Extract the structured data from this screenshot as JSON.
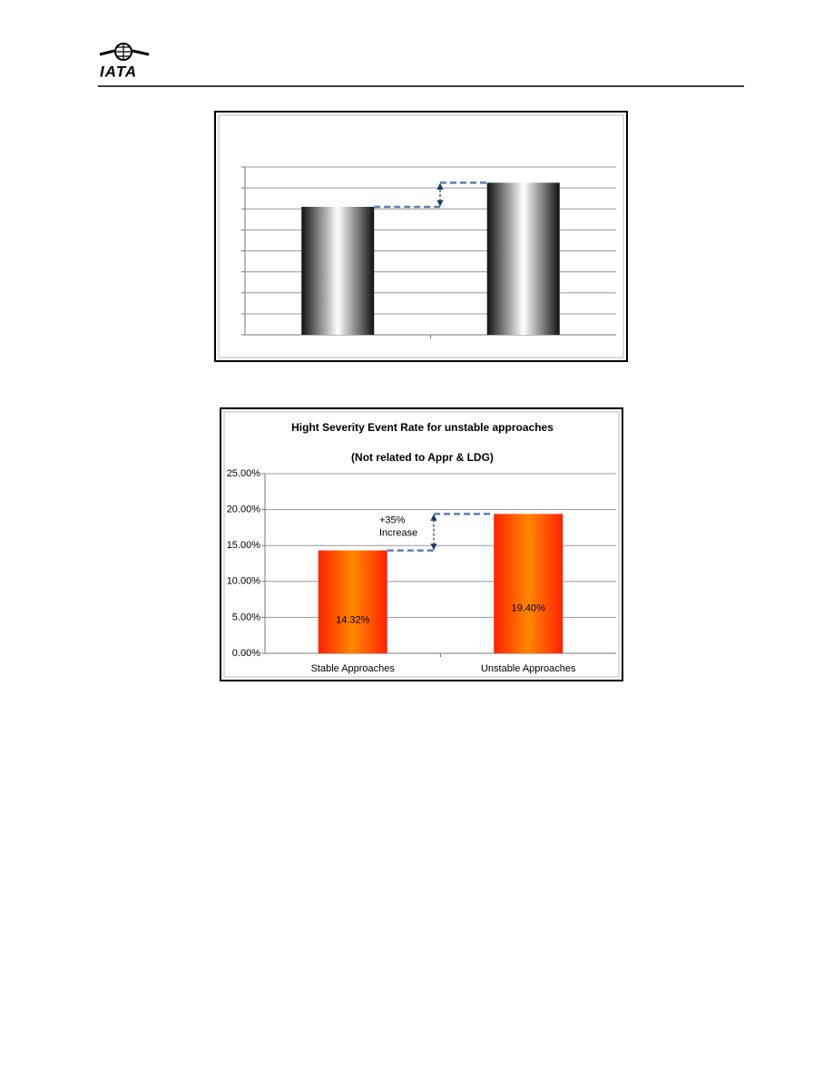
{
  "header": {
    "logo": "IATA"
  },
  "chart_data": [
    {
      "type": "bar",
      "categories": [
        null,
        null
      ],
      "values": [
        6.1,
        7.25
      ],
      "gradient": [
        "#111111",
        "#ffffff",
        "#111111"
      ],
      "ylim": [
        0,
        8
      ],
      "yticks": [
        0,
        1,
        2,
        3,
        4,
        5,
        6,
        7,
        8
      ],
      "tick_labels": false,
      "grid": true
    },
    {
      "type": "bar",
      "title": "Hight Severity Event Rate for unstable approaches",
      "subtitle": "(Not related to Appr & LDG)",
      "annotation": [
        "+35%",
        "Increase"
      ],
      "categories": [
        "Stable Approaches",
        "Unstable Approaches"
      ],
      "values": [
        14.32,
        19.4
      ],
      "value_labels": [
        "14.32%",
        "19.40%"
      ],
      "gradient": [
        "#ff2200",
        "#ff8800",
        "#ff2200"
      ],
      "ylim": [
        0,
        25
      ],
      "yticks": [
        {
          "value": 0,
          "label": "0.00%"
        },
        {
          "value": 5,
          "label": "5.00%"
        },
        {
          "value": 10,
          "label": "10.00%"
        },
        {
          "value": 15,
          "label": "15.00%"
        },
        {
          "value": 20,
          "label": "20.00%"
        },
        {
          "value": 25,
          "label": "25.00%"
        }
      ],
      "tick_labels": true,
      "grid": true
    }
  ]
}
